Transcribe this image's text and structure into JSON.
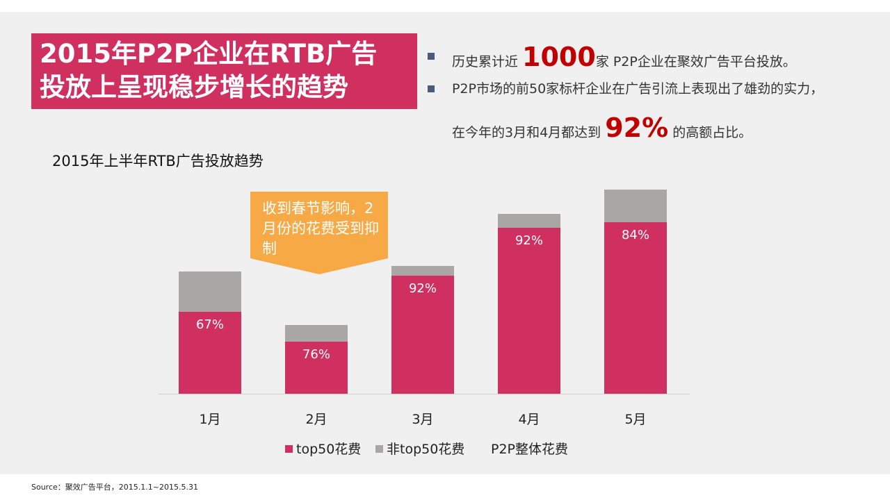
{
  "header": {
    "title_line1": "2015年P2P企业在RTB广告",
    "title_line2": "投放上呈现稳步增长的趋势"
  },
  "bullets": {
    "b1_pre": "历史累计近 ",
    "b1_number": "1000",
    "b1_post": "家 P2P企业在聚效广告平台投放。",
    "b2_line1": "P2P市场的前50家标杆企业在广告引流上表现出了雄劲的实力，",
    "b2_pre": "在今年的3月和4月都达到 ",
    "b2_number": "92%",
    "b2_post": " 的高额占比。"
  },
  "callout": {
    "text": "收到春节影响，2月份的花费受到抑制"
  },
  "colors": {
    "top50": "#d0305f",
    "non_top50": "#aaa6a6",
    "title_bg": "#d0305f",
    "callout": "#f6a945",
    "accent_red": "#c00000"
  },
  "chart_data": {
    "type": "bar",
    "stacked": true,
    "title": "2015年上半年RTB广告投放趋势",
    "categories": [
      "1月",
      "2月",
      "3月",
      "4月",
      "5月"
    ],
    "series": [
      {
        "name": "top50花费",
        "values": [
          118,
          75,
          170,
          239,
          247
        ]
      },
      {
        "name": "非top50花费",
        "values": [
          58,
          24,
          14,
          20,
          47
        ]
      }
    ],
    "data_labels": [
      "67%",
      "76%",
      "92%",
      "92%",
      "84%"
    ],
    "legend": [
      "top50花费",
      "非top50花费",
      "P2P整体花费"
    ],
    "legend_position": "bottom",
    "ylim": [
      0,
      300
    ],
    "grid": false
  },
  "footer": {
    "source": "Source：聚效广告平台，2015.1.1~2015.5.31"
  }
}
